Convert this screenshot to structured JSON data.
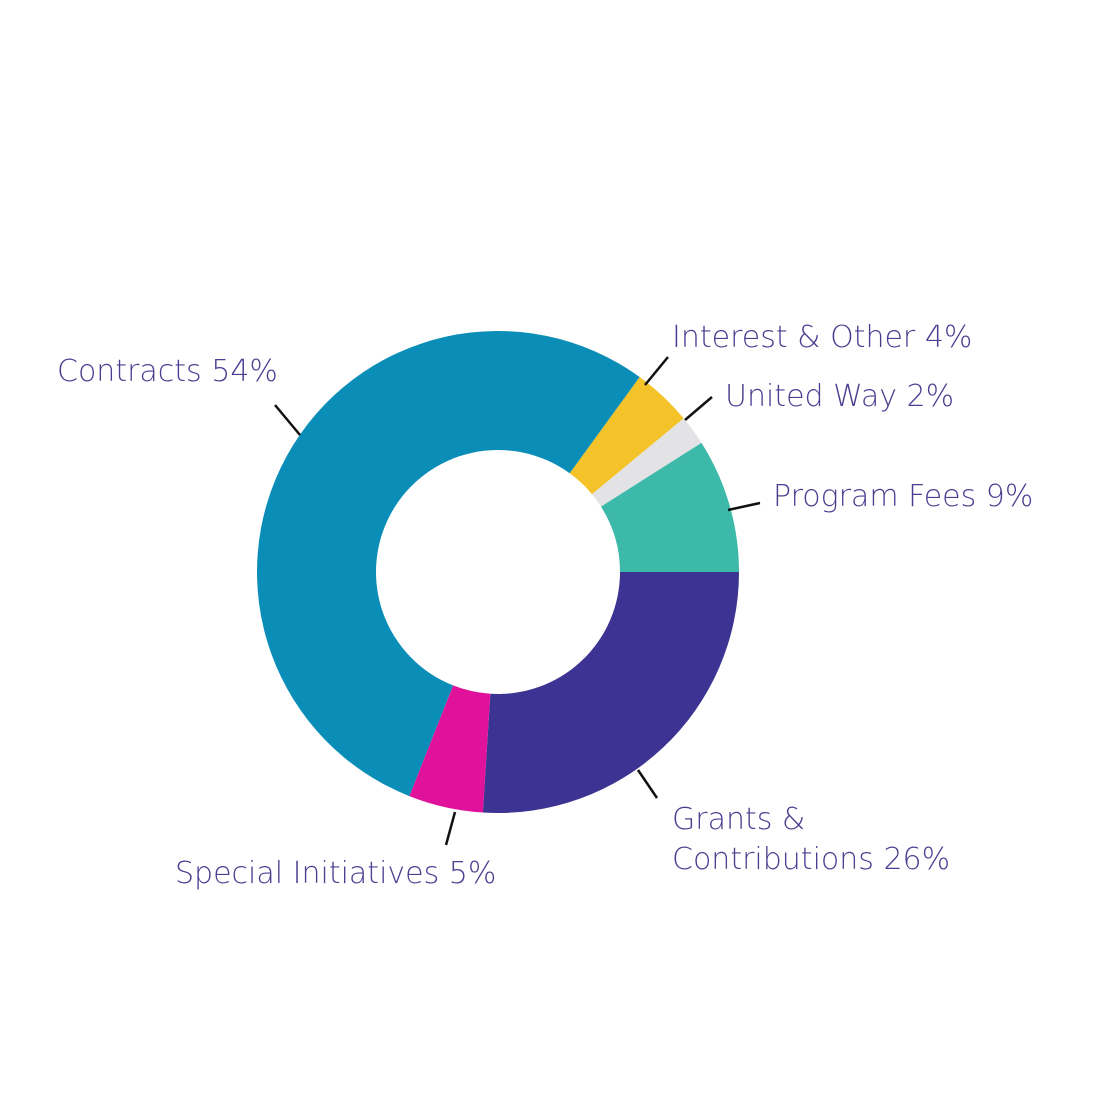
{
  "chart_data": {
    "type": "donut",
    "categories": [
      "Interest & Other",
      "United Way",
      "Program Fees",
      "Grants & Contributions",
      "Special Initiatives",
      "Contracts"
    ],
    "values": [
      4,
      2,
      9,
      26,
      5,
      54
    ],
    "value_labels": [
      "4%",
      "2%",
      "9%",
      "26%",
      "5%",
      "54%"
    ],
    "colors": [
      "#f4c229",
      "#e3e3e6",
      "#3cb9a9",
      "#3d3392",
      "#e0119b",
      "#0a8eb8"
    ]
  }
}
